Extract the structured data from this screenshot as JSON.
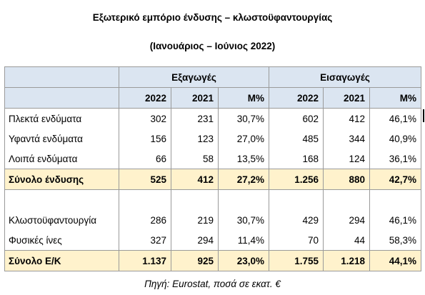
{
  "title_line1": "Εξωτερικό εμπόριο ένδυσης – κλωστοϋφαντουργίας",
  "title_line2": "(Ιανουάριος – Ιούνιος 2022)",
  "groups": {
    "exports": "Εξαγωγές",
    "imports": "Εισαγωγές"
  },
  "columns": [
    "2022",
    "2021",
    "Μ%",
    "2022",
    "2021",
    "Μ%"
  ],
  "rows": [
    {
      "label": "Πλεκτά ενδύματα",
      "values": [
        "302",
        "231",
        "30,7%",
        "602",
        "412",
        "46,1%"
      ]
    },
    {
      "label": "Υφαντά ενδύματα",
      "values": [
        "156",
        "123",
        "27,0%",
        "485",
        "344",
        "40,9%"
      ]
    },
    {
      "label": "Λοιπά ενδύματα",
      "values": [
        "66",
        "58",
        "13,5%",
        "168",
        "124",
        "36,1%"
      ]
    },
    {
      "label": "Σύνολο ένδυσης",
      "values": [
        "525",
        "412",
        "27,2%",
        "1.256",
        "880",
        "42,7%"
      ]
    },
    {
      "label": "Κλωστοϋφαντουργία",
      "values": [
        "286",
        "219",
        "30,7%",
        "429",
        "294",
        "46,1%"
      ]
    },
    {
      "label": "Φυσικές ίνες",
      "values": [
        "327",
        "294",
        "11,4%",
        "70",
        "44",
        "58,3%"
      ]
    },
    {
      "label": "Σύνολο Ε/Κ",
      "values": [
        "1.137",
        "925",
        "23,0%",
        "1.755",
        "1.218",
        "44,1%"
      ]
    }
  ],
  "source": "Πηγή: Eurostat, ποσά σε εκατ. €",
  "colors": {
    "header_bg": "#dbe5f1",
    "total_bg": "#fff2cc",
    "border": "#9a9a9a"
  }
}
